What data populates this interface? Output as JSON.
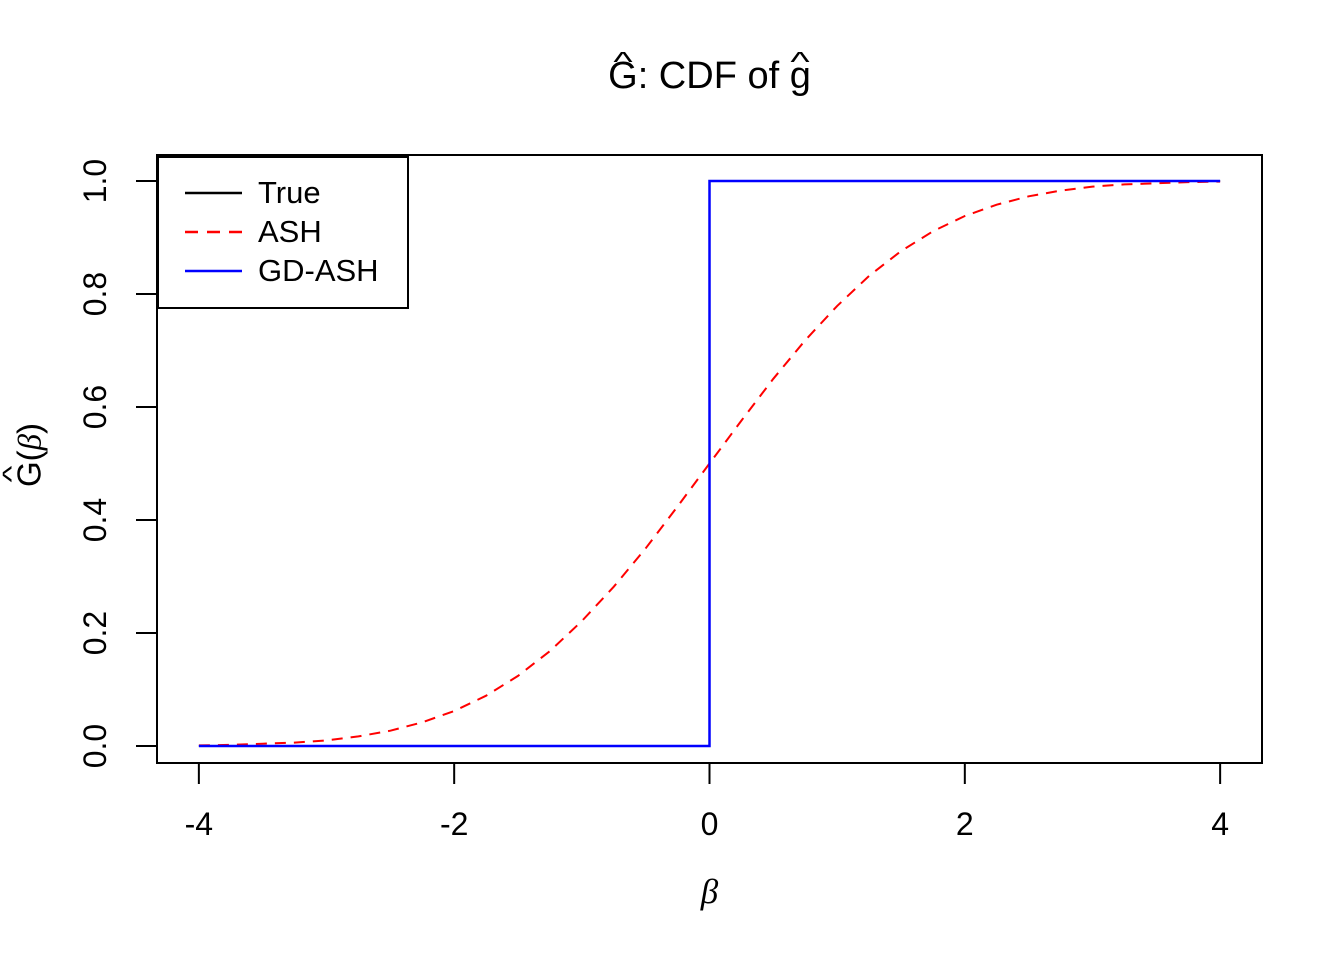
{
  "glyphs": {
    "hat": "^",
    "beta": "β"
  },
  "title": {
    "full": "Ĝ: CDF of ĝ",
    "hat1_base": "G",
    "separator": ": CDF of ",
    "hat2_base": "g"
  },
  "axes": {
    "x_label": "β",
    "y_label_full": "Ĝ(β)",
    "y_label_base": "G",
    "y_label_open": "(",
    "y_label_beta": "β",
    "y_label_close": ")"
  },
  "chart_data": {
    "type": "line",
    "title": "Ĝ: CDF of ĝ",
    "xlabel": "β",
    "ylabel": "Ĝ(β)",
    "xlim": [
      -4,
      4
    ],
    "ylim": [
      0,
      1
    ],
    "x_ticks": [
      -4,
      -2,
      0,
      2,
      4
    ],
    "x_tick_labels": [
      "-4",
      "-2",
      "0",
      "2",
      "4"
    ],
    "y_ticks": [
      0,
      0.2,
      0.4,
      0.6,
      0.8,
      1.0
    ],
    "y_tick_labels": [
      "0.0",
      "0.2",
      "0.4",
      "0.6",
      "0.8",
      "1.0"
    ],
    "grid": false,
    "background": "#ffffff",
    "axis_color": "#000000",
    "legend": {
      "position": "topleft",
      "entries": [
        "True",
        "ASH",
        "GD-ASH"
      ]
    },
    "series": [
      {
        "name": "True",
        "color": "#000000",
        "style": "solid",
        "kind": "step-cdf",
        "points": [
          [
            -4,
            0
          ],
          [
            0,
            0
          ],
          [
            0,
            1
          ],
          [
            4,
            1
          ]
        ]
      },
      {
        "name": "ASH",
        "color": "#FF0000",
        "style": "dashed",
        "kind": "smooth-cdf",
        "points": [
          [
            -4,
            0.001
          ],
          [
            -3.75,
            0.002
          ],
          [
            -3.5,
            0.004
          ],
          [
            -3.25,
            0.006
          ],
          [
            -3,
            0.01
          ],
          [
            -2.75,
            0.017
          ],
          [
            -2.5,
            0.027
          ],
          [
            -2.25,
            0.042
          ],
          [
            -2,
            0.062
          ],
          [
            -1.75,
            0.089
          ],
          [
            -1.5,
            0.124
          ],
          [
            -1.25,
            0.168
          ],
          [
            -1,
            0.221
          ],
          [
            -0.75,
            0.282
          ],
          [
            -0.5,
            0.35
          ],
          [
            -0.25,
            0.424
          ],
          [
            0,
            0.5
          ],
          [
            0.25,
            0.576
          ],
          [
            0.5,
            0.65
          ],
          [
            0.75,
            0.718
          ],
          [
            1,
            0.779
          ],
          [
            1.25,
            0.832
          ],
          [
            1.5,
            0.876
          ],
          [
            1.75,
            0.911
          ],
          [
            2,
            0.938
          ],
          [
            2.25,
            0.958
          ],
          [
            2.5,
            0.973
          ],
          [
            2.75,
            0.983
          ],
          [
            3,
            0.99
          ],
          [
            3.25,
            0.994
          ],
          [
            3.5,
            0.996
          ],
          [
            3.75,
            0.998
          ],
          [
            4,
            0.999
          ]
        ]
      },
      {
        "name": "GD-ASH",
        "color": "#0000FF",
        "style": "solid",
        "kind": "step-cdf",
        "points": [
          [
            -4,
            0
          ],
          [
            0,
            0
          ],
          [
            0,
            1
          ],
          [
            4,
            1
          ]
        ]
      }
    ]
  }
}
